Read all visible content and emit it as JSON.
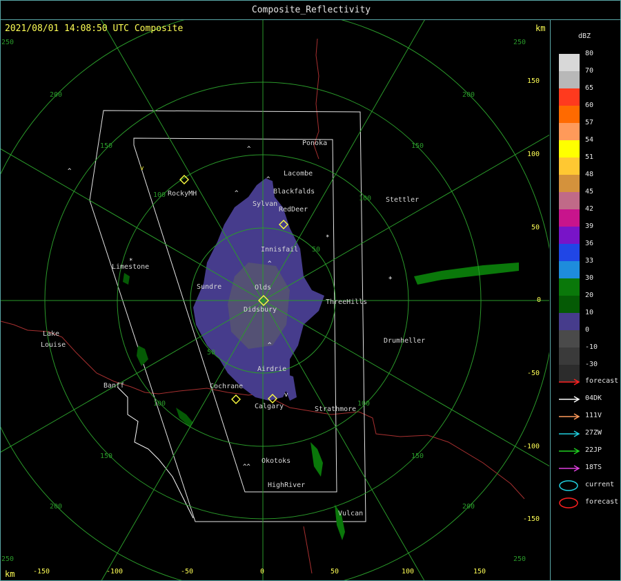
{
  "window_title": "Composite_Reflectivity",
  "timestamp": "2021/08/01 14:08:50 UTC Composite",
  "km_label": "km",
  "units": "dBZ",
  "range_ring_labels": [
    "50",
    "100",
    "150",
    "200",
    "250"
  ],
  "corner_labels": [
    "250",
    "250",
    "250",
    "250"
  ],
  "x_axis_ticks": [
    "-150",
    "-100",
    "-50",
    "0",
    "50",
    "100",
    "150"
  ],
  "y_axis_ticks": [
    "150",
    "100",
    "50",
    "0",
    "-50",
    "-100",
    "-150"
  ],
  "color_scale": [
    {
      "label": "80",
      "color": "#d8d8d8"
    },
    {
      "label": "70",
      "color": "#b8b8b8"
    },
    {
      "label": "65",
      "color": "#ff3a1e"
    },
    {
      "label": "60",
      "color": "#ff6a00"
    },
    {
      "label": "57",
      "color": "#ff9a5a"
    },
    {
      "label": "54",
      "color": "#ffff00"
    },
    {
      "label": "51",
      "color": "#ffc832"
    },
    {
      "label": "48",
      "color": "#d4923c"
    },
    {
      "label": "45",
      "color": "#c06a88"
    },
    {
      "label": "42",
      "color": "#c8148c"
    },
    {
      "label": "39",
      "color": "#7814c8"
    },
    {
      "label": "36",
      "color": "#2046e6"
    },
    {
      "label": "33",
      "color": "#1e8cdc"
    },
    {
      "label": "30",
      "color": "#0a780a"
    },
    {
      "label": "20",
      "color": "#055a05"
    },
    {
      "label": "10",
      "color": "#463c8c"
    },
    {
      "label": "0",
      "color": "#4a4a4a"
    },
    {
      "label": "-10",
      "color": "#3a3a3a"
    },
    {
      "label": "-30",
      "color": "#2c2c2c"
    }
  ],
  "track_legend": [
    {
      "label": "forecast",
      "color": "#ff2020",
      "kind": "arrow"
    },
    {
      "label": "04DK",
      "color": "#ffffff",
      "kind": "arrow"
    },
    {
      "label": "111V",
      "color": "#ff9a5a",
      "kind": "arrow"
    },
    {
      "label": "27ZW",
      "color": "#20d0e0",
      "kind": "arrow"
    },
    {
      "label": "22JP",
      "color": "#20d020",
      "kind": "arrow"
    },
    {
      "label": "18TS",
      "color": "#e040e0",
      "kind": "arrow"
    },
    {
      "label": "current",
      "color": "#20d0e0",
      "kind": "ellipse"
    },
    {
      "label": "forecast",
      "color": "#ff2020",
      "kind": "ellipse"
    }
  ],
  "towns": {
    "ponoka": "Ponoka",
    "lacombe": "Lacombe",
    "blackfalds": "Blackfalds",
    "sylvan": "Sylvan",
    "reddeer": "RedDeer",
    "rockymh": "RockyMH",
    "stettler": "Stettler",
    "innisfail": "Innisfail",
    "limestone": "Limestone",
    "sundre": "Sundre",
    "olds": "Olds",
    "threehills": "ThreeHills",
    "didsbury": "Didsbury",
    "lake": "Lake",
    "louise": "Louise",
    "drumheller": "Drumheller",
    "airdrie": "Airdrie",
    "banff": "Banff",
    "cochrane": "Cochrane",
    "calgary": "Calgary",
    "strathmore": "Strathmore",
    "okotoks": "Okotoks",
    "highriver": "HighRiver",
    "vulcan": "Vulcan"
  }
}
